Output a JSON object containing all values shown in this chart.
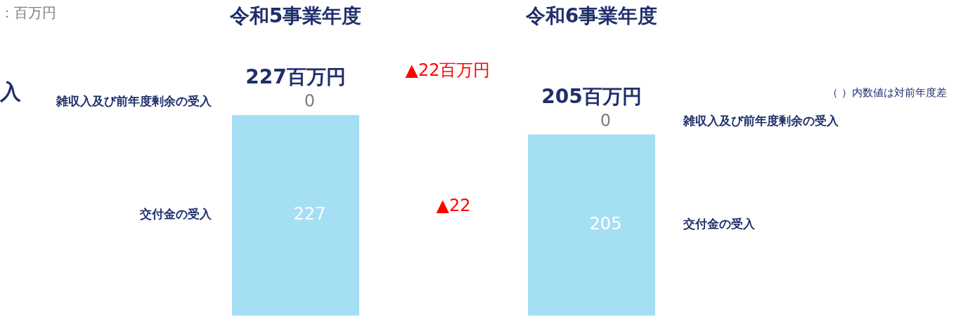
{
  "chart_data": {
    "type": "bar",
    "title": "入",
    "stacked": true,
    "categories": [
      "令和5事業年度",
      "令和6事業年度"
    ],
    "series": [
      {
        "name": "交付金の受入",
        "color": "#a5dff3",
        "values": [
          227,
          205
        ]
      },
      {
        "name": "雑収入及び前年度剰余の受入",
        "values": [
          0,
          0
        ]
      }
    ],
    "totals": [
      "227百万円",
      "205百万円"
    ],
    "data_labels": true,
    "legend": false,
    "annotations": [
      "：百万円",
      "▲22百万円",
      "▲22",
      "（ ）内数値は対前年度差"
    ]
  }
}
